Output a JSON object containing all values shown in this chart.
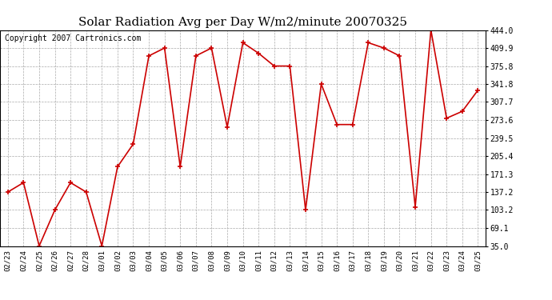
{
  "title": "Solar Radiation Avg per Day W/m2/minute 20070325",
  "copyright": "Copyright 2007 Cartronics.com",
  "dates": [
    "02/23",
    "02/24",
    "02/25",
    "02/26",
    "02/27",
    "02/28",
    "03/01",
    "03/02",
    "03/03",
    "03/04",
    "03/05",
    "03/06",
    "03/07",
    "03/08",
    "03/09",
    "03/10",
    "03/11",
    "03/12",
    "03/13",
    "03/14",
    "03/15",
    "03/16",
    "03/17",
    "03/18",
    "03/19",
    "03/20",
    "03/21",
    "03/22",
    "03/23",
    "03/24",
    "03/25"
  ],
  "values": [
    137.2,
    155.0,
    35.0,
    103.2,
    155.0,
    137.2,
    35.0,
    185.0,
    228.0,
    395.0,
    409.9,
    185.0,
    395.0,
    409.9,
    260.0,
    420.0,
    400.0,
    375.8,
    375.8,
    103.2,
    341.8,
    265.0,
    265.0,
    420.0,
    409.9,
    395.0,
    109.0,
    444.0,
    277.0,
    290.0,
    330.0
  ],
  "y_ticks": [
    35.0,
    69.1,
    103.2,
    137.2,
    171.3,
    205.4,
    239.5,
    273.6,
    307.7,
    341.8,
    375.8,
    409.9,
    444.0
  ],
  "line_color": "#cc0000",
  "marker": "+",
  "marker_size": 5,
  "marker_color": "#cc0000",
  "bg_color": "#ffffff",
  "grid_color": "#aaaaaa",
  "title_fontsize": 11,
  "copyright_fontsize": 7,
  "y_label_fontsize": 7,
  "x_label_fontsize": 6.5,
  "ylim": [
    35.0,
    444.0
  ]
}
